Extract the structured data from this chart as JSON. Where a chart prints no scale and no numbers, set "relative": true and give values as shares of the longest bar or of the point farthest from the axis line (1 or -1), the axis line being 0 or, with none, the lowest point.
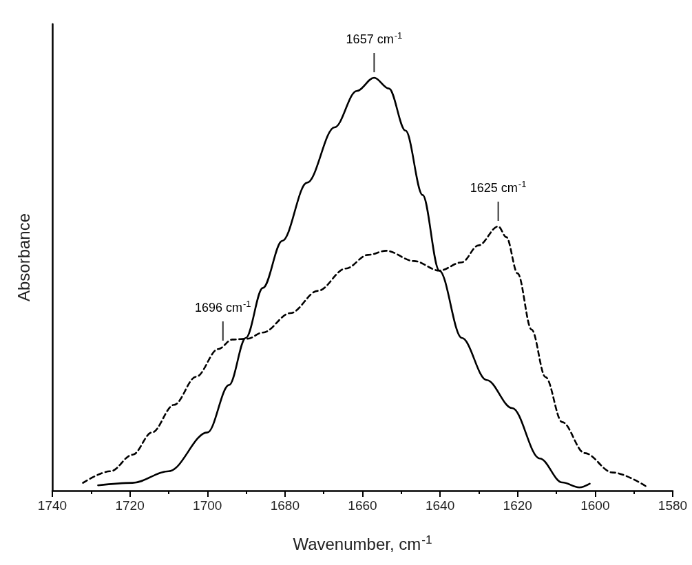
{
  "chart_data": {
    "type": "line",
    "relative": true,
    "xlabel": "Wavenumber, cm$^{-1}$",
    "ylabel": "Absorbance",
    "xlim": [
      1740,
      1580
    ],
    "xticks": [
      1740,
      1720,
      1700,
      1680,
      1660,
      1640,
      1620,
      1600,
      1580
    ],
    "grid": false,
    "marker": "none",
    "series": [
      {
        "color": "#000000",
        "line_style": "solid",
        "x": [
          1728.2,
          1719.3,
          1710.0,
          1700.0,
          1694.4,
          1690.1,
          1685.7,
          1680.7,
          1674.3,
          1667.2,
          1661.5,
          1657,
          1653.2,
          1648.9,
          1644.5,
          1640.2,
          1634.4,
          1628.0,
          1621.4,
          1614.3,
          1608.5,
          1604.1,
          1601.4
        ],
        "values": [
          0.013,
          0.019,
          0.047,
          0.141,
          0.256,
          0.37,
          0.491,
          0.605,
          0.746,
          0.88,
          0.968,
          1.0,
          0.974,
          0.872,
          0.716,
          0.533,
          0.37,
          0.268,
          0.2,
          0.078,
          0.02,
          0.008,
          0.017
        ]
      },
      {
        "color": "#000000",
        "line_style": "dashed",
        "x": [
          1732.1,
          1725.0,
          1719.3,
          1714.3,
          1708.6,
          1702.9,
          1697.2,
          1693.6,
          1689.7,
          1685.7,
          1678.6,
          1671.5,
          1664.3,
          1658.6,
          1653.9,
          1646.7,
          1640.2,
          1634.4,
          1630.1,
          1625,
          1622.9,
          1620.0,
          1616.4,
          1612.8,
          1608.5,
          1602.7,
          1595.5,
          1586.8
        ],
        "values": [
          0.019,
          0.047,
          0.087,
          0.141,
          0.208,
          0.276,
          0.343,
          0.366,
          0.368,
          0.383,
          0.43,
          0.484,
          0.538,
          0.571,
          0.581,
          0.556,
          0.533,
          0.553,
          0.594,
          0.64,
          0.614,
          0.526,
          0.39,
          0.275,
          0.166,
          0.091,
          0.044,
          0.01
        ]
      }
    ],
    "annotations": [
      {
        "text": "1657 cm$^{-1}$",
        "x": 1657,
        "y": 1.0
      },
      {
        "text": "1625 cm$^{-1}$",
        "x": 1625,
        "y": 0.64
      },
      {
        "text": "1696 cm$^{-1}$",
        "x": 1696,
        "y": 0.35
      }
    ]
  }
}
